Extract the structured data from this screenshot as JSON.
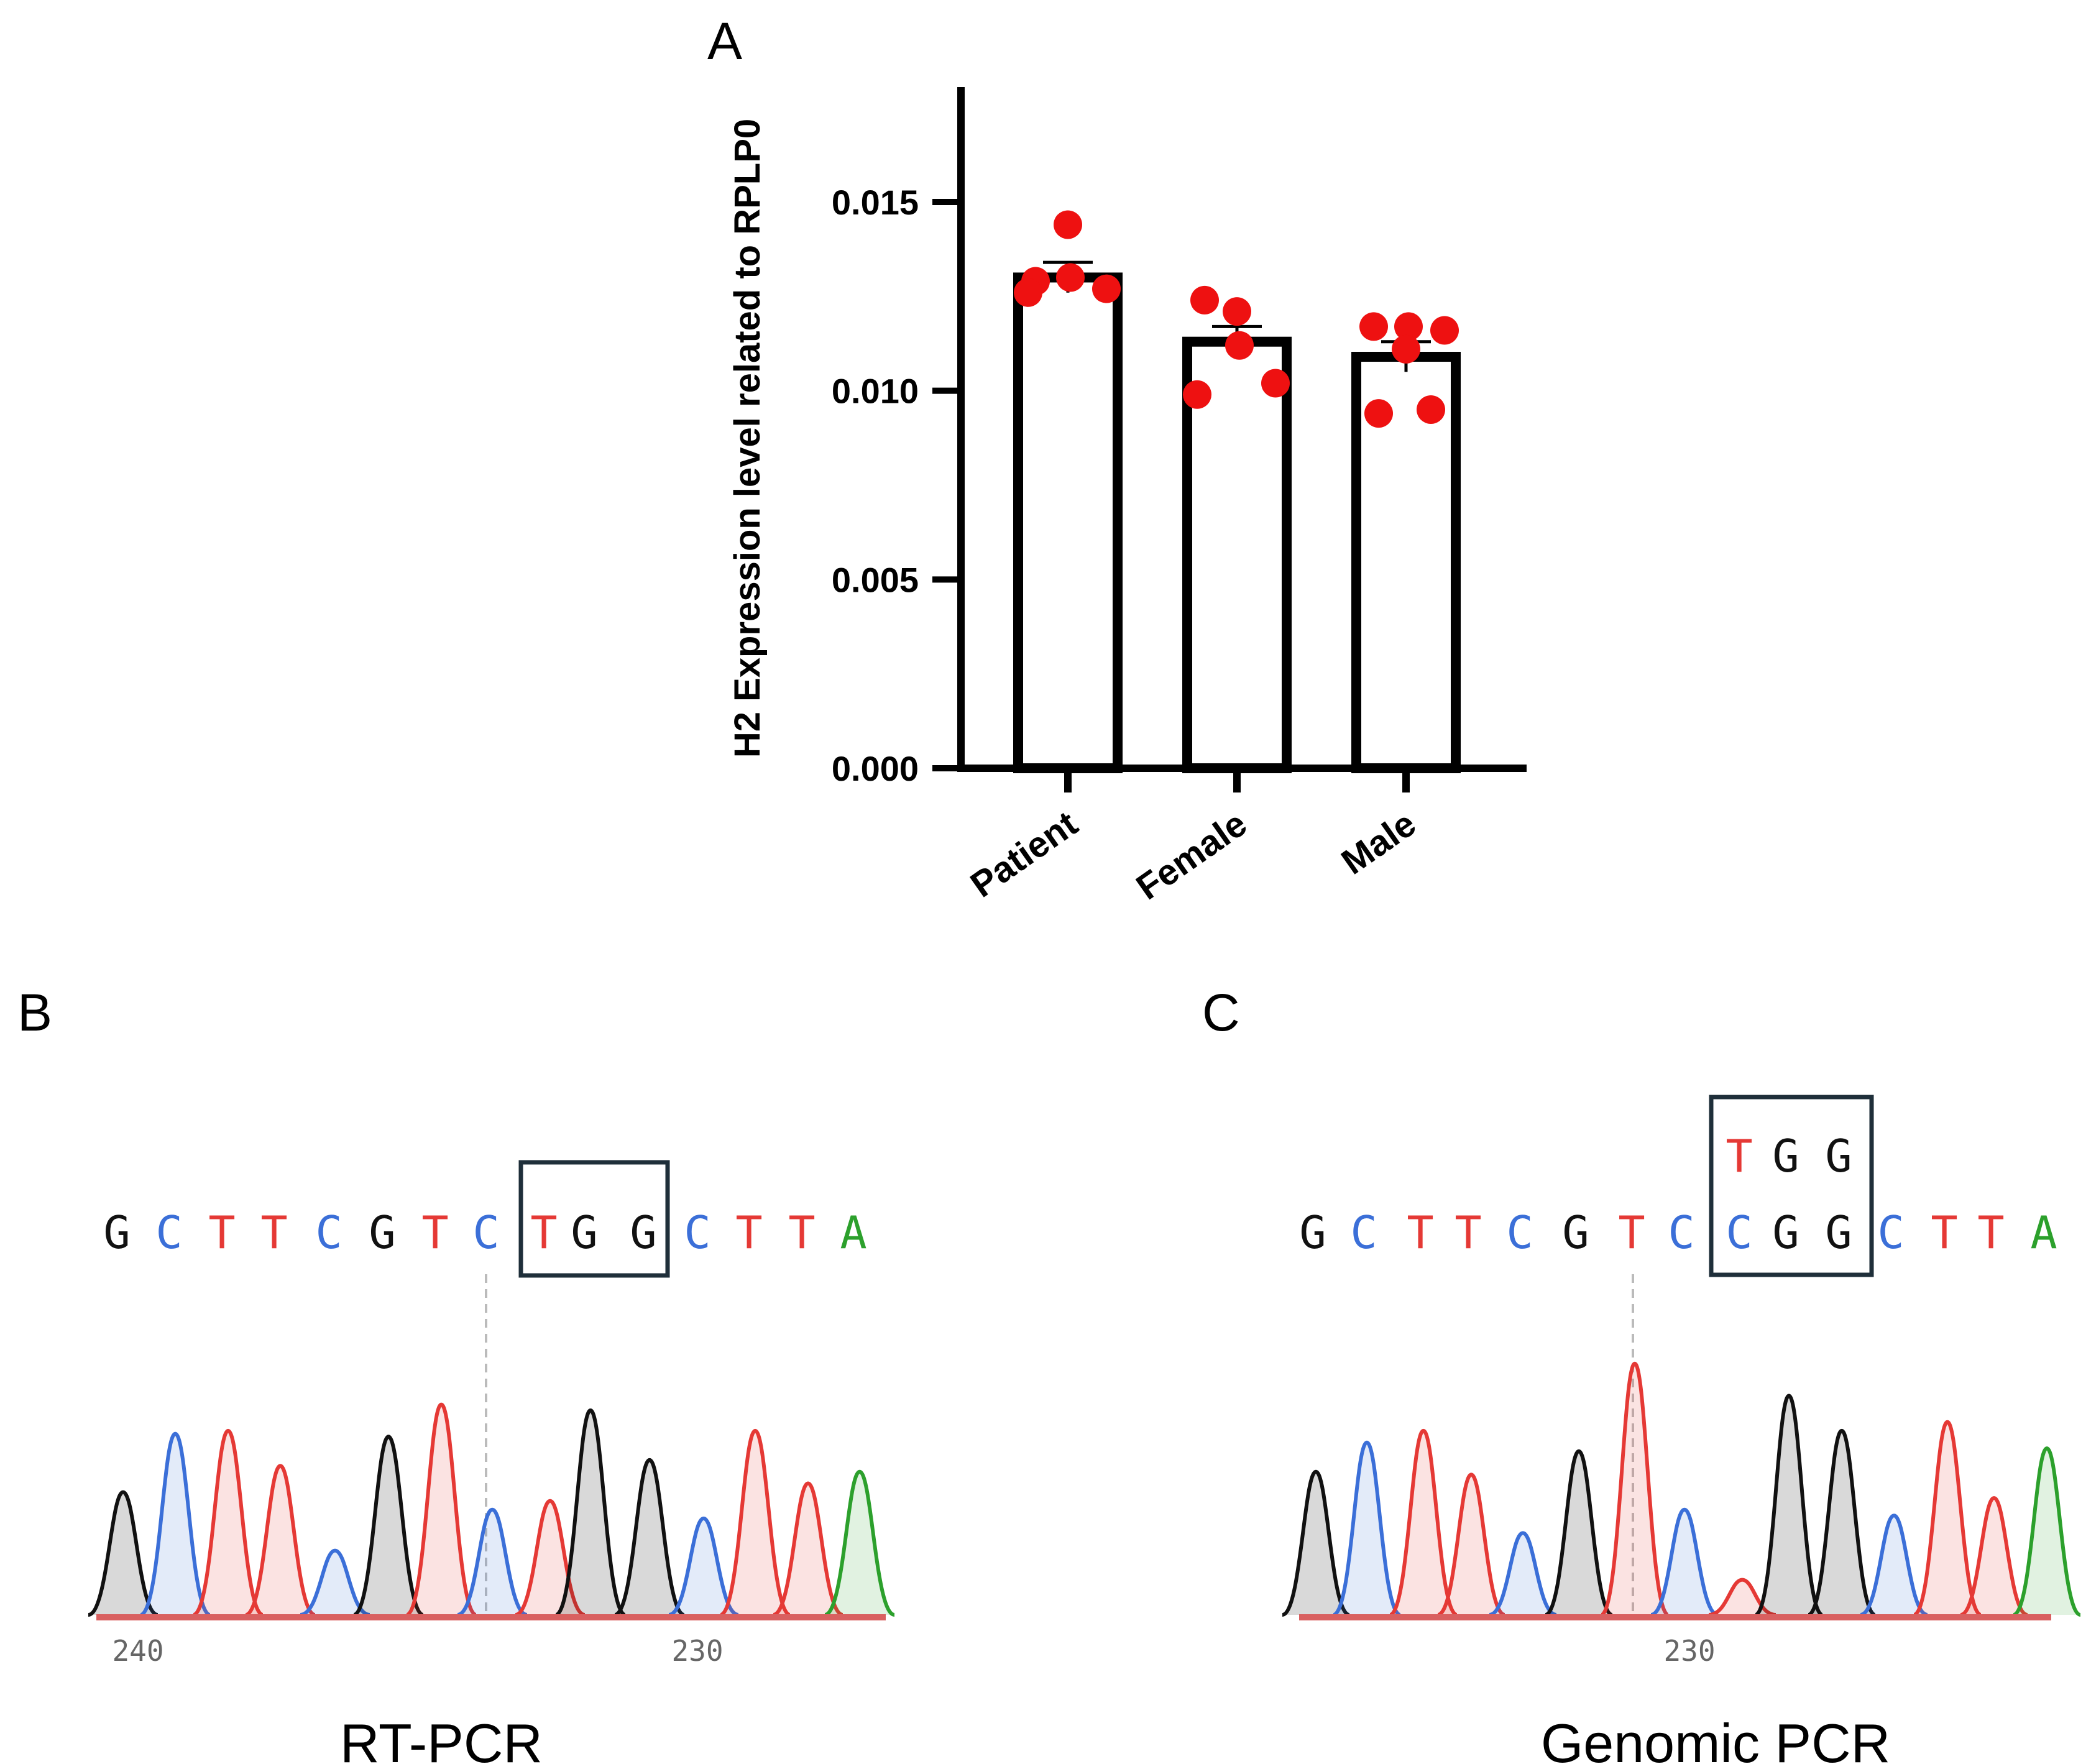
{
  "colors": {
    "A": "#2ca02c",
    "C": "#3b6fd8",
    "G": "#111111",
    "T": "#e53935",
    "point": "#ee1111",
    "baseline": "#d96060",
    "box": "#1f2f3a"
  },
  "panel_a": {
    "label": "A",
    "chart_data": {
      "type": "bar",
      "title": "",
      "xlabel": "",
      "ylabel": "H2 Expression level related to RPLP0",
      "ylim": [
        0,
        0.018
      ],
      "yticks": [
        "0.000",
        "0.005",
        "0.010",
        "0.015"
      ],
      "ytick_values": [
        0,
        0.005,
        0.01,
        0.015
      ],
      "categories": [
        "Patient",
        "Female",
        "Male"
      ],
      "values": [
        0.013,
        0.0113,
        0.0109
      ],
      "error": [
        0.0004,
        0.0004,
        0.0004
      ],
      "points": [
        [
          0.0144,
          0.0129,
          0.013,
          0.0126,
          0.0127
        ],
        [
          0.0121,
          0.0124,
          0.0112,
          0.0099,
          0.0102
        ],
        [
          0.0117,
          0.0117,
          0.0116,
          0.0111,
          0.0094,
          0.0095
        ]
      ]
    }
  },
  "panel_b": {
    "label": "B",
    "caption": "RT-PCR",
    "sequence": [
      "G",
      "C",
      "T",
      "T",
      "C",
      "G",
      "T",
      "C",
      "T",
      "G",
      "G",
      "C",
      "T",
      "T",
      "A"
    ],
    "positions": [
      "240",
      "230"
    ],
    "chart_data": {
      "type": "area",
      "title": "RT-PCR",
      "x_tick_labels": [
        "240",
        "230"
      ],
      "peaks": [
        {
          "base": "G",
          "height": 0.42
        },
        {
          "base": "C",
          "height": 0.62
        },
        {
          "base": "T",
          "height": 0.63
        },
        {
          "base": "T",
          "height": 0.51
        },
        {
          "base": "C",
          "height": 0.22
        },
        {
          "base": "G",
          "height": 0.61
        },
        {
          "base": "T",
          "height": 0.72
        },
        {
          "base": "C",
          "height": 0.36
        },
        {
          "base": "T",
          "height": 0.39
        },
        {
          "base": "G",
          "height": 0.7
        },
        {
          "base": "G",
          "height": 0.53
        },
        {
          "base": "C",
          "height": 0.33
        },
        {
          "base": "T",
          "height": 0.63
        },
        {
          "base": "T",
          "height": 0.45
        },
        {
          "base": "A",
          "height": 0.49
        }
      ]
    }
  },
  "panel_c": {
    "label": "C",
    "caption": "Genomic PCR",
    "sequence": [
      "G",
      "C",
      "T",
      "T",
      "C",
      "G",
      "T",
      "C",
      "C",
      "G",
      "G",
      "C",
      "T",
      "T",
      "A"
    ],
    "box_top": [
      "T",
      "G",
      "G"
    ],
    "positions": [
      "230"
    ],
    "chart_data": {
      "type": "area",
      "title": "Genomic PCR",
      "x_tick_labels": [
        "230"
      ],
      "peaks": [
        {
          "base": "G",
          "height": 0.49
        },
        {
          "base": "C",
          "height": 0.59
        },
        {
          "base": "T",
          "height": 0.63
        },
        {
          "base": "T",
          "height": 0.48
        },
        {
          "base": "C",
          "height": 0.28
        },
        {
          "base": "G",
          "height": 0.56
        },
        {
          "base": "T",
          "height": 0.86
        },
        {
          "base": "C",
          "height": 0.36
        },
        {
          "base": "T",
          "height": 0.12
        },
        {
          "base": "G",
          "height": 0.75
        },
        {
          "base": "G",
          "height": 0.63
        },
        {
          "base": "C",
          "height": 0.34
        },
        {
          "base": "T",
          "height": 0.66
        },
        {
          "base": "T",
          "height": 0.4
        },
        {
          "base": "A",
          "height": 0.57
        }
      ]
    }
  }
}
